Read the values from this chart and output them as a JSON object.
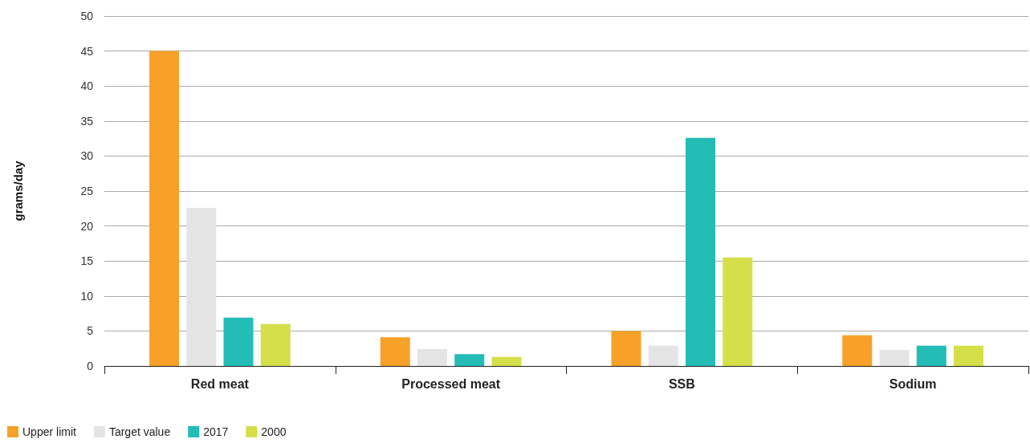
{
  "chart_data": {
    "type": "bar",
    "ylabel": "grams/day",
    "categories": [
      "Red meat",
      "Processed meat",
      "SSB",
      "Sodium"
    ],
    "series": [
      {
        "name": "Upper limit",
        "color": "#f7a128",
        "values": [
          45,
          4.1,
          5.0,
          4.4
        ]
      },
      {
        "name": "Target value",
        "color": "#e3e4e3",
        "values": [
          22.6,
          2.4,
          2.9,
          2.3
        ]
      },
      {
        "name": "2017",
        "color": "#23bdb5",
        "values": [
          6.9,
          1.7,
          32.6,
          2.9
        ]
      },
      {
        "name": "2000",
        "color": "#d5df4a",
        "values": [
          6.0,
          1.3,
          15.5,
          2.9
        ]
      }
    ],
    "ylim": [
      0,
      50
    ],
    "yticks": [
      0,
      5,
      10,
      15,
      20,
      25,
      30,
      35,
      40,
      45,
      50
    ],
    "grid": "y",
    "legend": "bottom left"
  }
}
